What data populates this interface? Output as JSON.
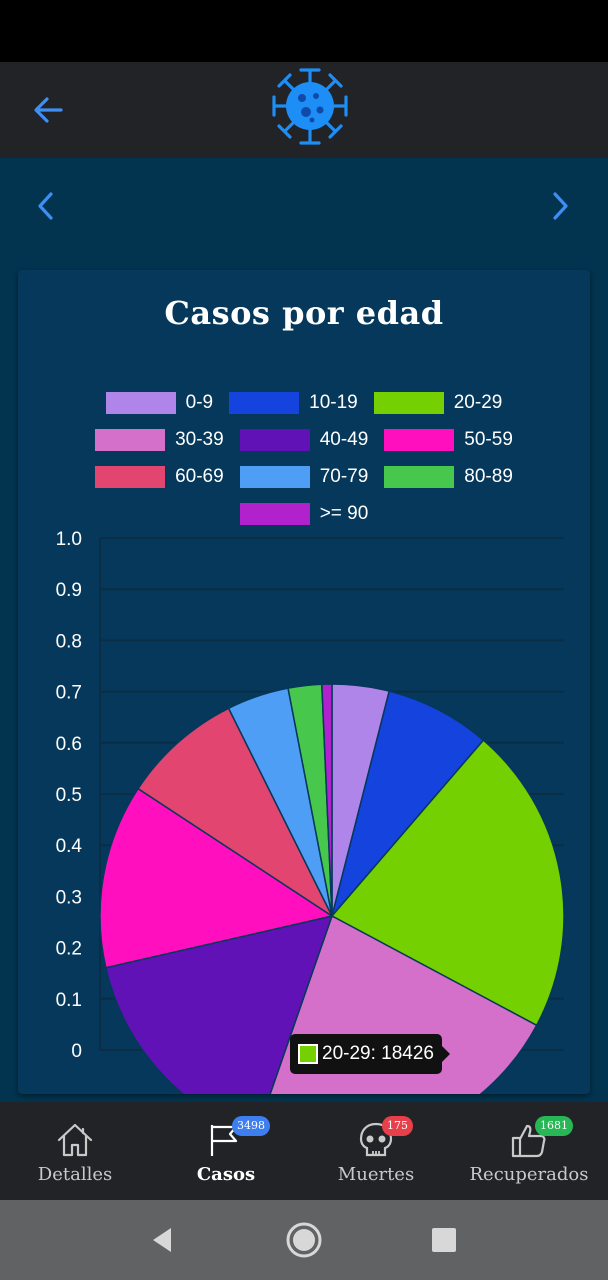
{
  "app": {
    "back_icon": "arrow-left-icon",
    "logo_icon": "virus-icon",
    "accent_color": "#3d8ef5"
  },
  "pager": {
    "prev_icon": "chevron-left-icon",
    "next_icon": "chevron-right-icon"
  },
  "chart_data": {
    "type": "pie",
    "title": "Casos por edad",
    "legend_position": "top",
    "categories": [
      "0-9",
      "10-19",
      "20-29",
      "30-39",
      "40-49",
      "50-59",
      "60-69",
      "70-79",
      "80-89",
      ">= 90"
    ],
    "colors": [
      "#b085ea",
      "#1443de",
      "#74d000",
      "#d46fca",
      "#6112b6",
      "#ff0fbd",
      "#e24570",
      "#4f9ef6",
      "#47c84c",
      "#b122cc"
    ],
    "values": [
      3400,
      6300,
      18426,
      19300,
      13800,
      11000,
      7200,
      3700,
      2000,
      600
    ],
    "yaxis_ticks": [
      "1.0",
      "0.9",
      "0.8",
      "0.7",
      "0.6",
      "0.5",
      "0.4",
      "0.3",
      "0.2",
      "0.1",
      "0"
    ],
    "ylim": [
      0,
      1
    ],
    "grid": true,
    "tooltip": {
      "label": "20-29: 18426",
      "color": "#74d000"
    }
  },
  "bottom_nav": {
    "items": [
      {
        "label": "Detalles",
        "icon": "home-icon",
        "badge": "",
        "active": false
      },
      {
        "label": "Casos",
        "icon": "flag-icon",
        "badge": "3498",
        "badge_color": "#3d7ff0",
        "active": true
      },
      {
        "label": "Muertes",
        "icon": "skull-icon",
        "badge": "175",
        "badge_color": "#e8404a",
        "active": false
      },
      {
        "label": "Recuperados",
        "icon": "thumbs-up-icon",
        "badge": "1681",
        "badge_color": "#27b755",
        "active": false
      }
    ]
  },
  "android_nav": {
    "back_icon": "triangle-back-icon",
    "home_icon": "circle-home-icon",
    "recents_icon": "square-recents-icon"
  }
}
